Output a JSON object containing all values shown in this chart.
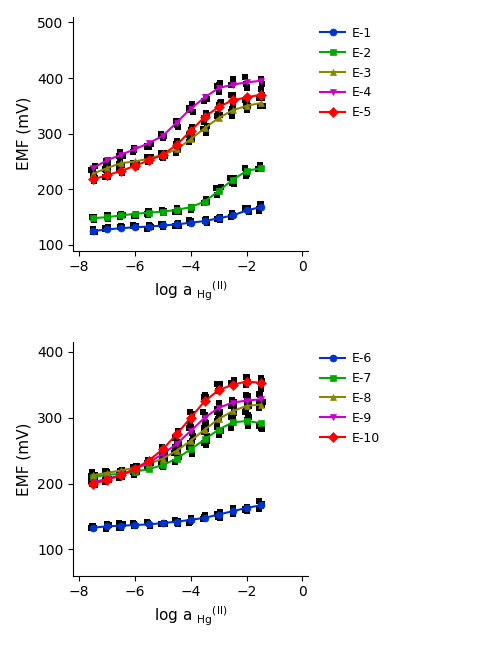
{
  "x_values": [
    -7.5,
    -7.0,
    -6.5,
    -6.0,
    -5.5,
    -5.0,
    -4.5,
    -4.0,
    -3.5,
    -3.0,
    -2.5,
    -2.0,
    -1.5
  ],
  "top_plot": {
    "ylabel": "EMF (mV)",
    "ylim": [
      90,
      510
    ],
    "yticks": [
      100,
      200,
      300,
      400,
      500
    ],
    "xlim": [
      -8.2,
      0.2
    ],
    "xticks": [
      -8,
      -6,
      -4,
      -2,
      0
    ],
    "series": [
      {
        "label": "E-1",
        "color": "#0033CC",
        "marker": "o",
        "data": [
          125,
          128,
          130,
          132,
          133,
          135,
          137,
          140,
          143,
          148,
          153,
          162,
          168
        ],
        "spread": [
          4,
          4,
          4,
          4,
          4,
          4,
          4,
          5,
          5,
          5,
          6,
          7,
          8
        ]
      },
      {
        "label": "E-2",
        "color": "#00AA00",
        "marker": "s",
        "data": [
          148,
          150,
          153,
          156,
          158,
          160,
          163,
          168,
          178,
          197,
          217,
          233,
          238
        ],
        "spread": [
          4,
          4,
          4,
          4,
          4,
          4,
          5,
          5,
          6,
          7,
          8,
          9,
          9
        ]
      },
      {
        "label": "E-3",
        "color": "#888800",
        "marker": "^",
        "data": [
          228,
          238,
          247,
          250,
          255,
          262,
          272,
          290,
          310,
          328,
          342,
          350,
          355
        ],
        "spread": [
          5,
          5,
          5,
          5,
          5,
          6,
          7,
          8,
          9,
          10,
          10,
          11,
          11
        ]
      },
      {
        "label": "E-4",
        "color": "#CC00CC",
        "marker": "v",
        "data": [
          238,
          252,
          262,
          272,
          283,
          296,
          320,
          345,
          365,
          382,
          388,
          392,
          395
        ],
        "spread": [
          5,
          5,
          6,
          6,
          7,
          7,
          8,
          9,
          10,
          10,
          11,
          11,
          11
        ]
      },
      {
        "label": "E-5",
        "color": "#FF0000",
        "marker": "D",
        "data": [
          218,
          225,
          233,
          242,
          252,
          262,
          280,
          305,
          330,
          348,
          360,
          365,
          370
        ],
        "spread": [
          5,
          5,
          5,
          5,
          6,
          6,
          7,
          8,
          9,
          10,
          10,
          10,
          10
        ]
      }
    ]
  },
  "bottom_plot": {
    "ylabel": "EMF (mV)",
    "ylim": [
      60,
      415
    ],
    "yticks": [
      100,
      200,
      300,
      400
    ],
    "xlim": [
      -8.2,
      0.2
    ],
    "xticks": [
      -8,
      -6,
      -4,
      -2,
      0
    ],
    "series": [
      {
        "label": "E-6",
        "color": "#0033CC",
        "marker": "o",
        "data": [
          133,
          135,
          136,
          137,
          138,
          140,
          142,
          145,
          148,
          153,
          158,
          163,
          167
        ],
        "spread": [
          4,
          4,
          4,
          4,
          4,
          4,
          4,
          5,
          5,
          5,
          6,
          7,
          7
        ]
      },
      {
        "label": "E-7",
        "color": "#00AA00",
        "marker": "s",
        "data": [
          210,
          213,
          215,
          218,
          222,
          228,
          238,
          252,
          267,
          282,
          293,
          295,
          292
        ],
        "spread": [
          5,
          5,
          5,
          5,
          5,
          6,
          7,
          8,
          9,
          9,
          10,
          10,
          10
        ]
      },
      {
        "label": "E-8",
        "color": "#888800",
        "marker": "^",
        "data": [
          213,
          216,
          220,
          224,
          230,
          238,
          250,
          265,
          282,
          298,
          310,
          318,
          320
        ],
        "spread": [
          5,
          5,
          5,
          5,
          6,
          6,
          7,
          8,
          9,
          9,
          10,
          10,
          10
        ]
      },
      {
        "label": "E-9",
        "color": "#CC00CC",
        "marker": "v",
        "data": [
          202,
          207,
          213,
          222,
          232,
          245,
          260,
          280,
          300,
          315,
          323,
          326,
          328
        ],
        "spread": [
          5,
          5,
          5,
          5,
          6,
          6,
          7,
          8,
          9,
          9,
          10,
          10,
          10
        ]
      },
      {
        "label": "E-10",
        "color": "#FF0000",
        "marker": "D",
        "data": [
          200,
          205,
          213,
          222,
          235,
          252,
          275,
          300,
          325,
          342,
          350,
          355,
          353
        ],
        "spread": [
          5,
          5,
          5,
          5,
          6,
          7,
          8,
          9,
          10,
          10,
          10,
          10,
          10
        ]
      }
    ]
  },
  "n_trials": 4,
  "linewidth": 1.5,
  "markersize": 5,
  "trial_markersize": 5,
  "legend_fontsize": 9,
  "axis_label_fontsize": 11,
  "tick_fontsize": 10
}
